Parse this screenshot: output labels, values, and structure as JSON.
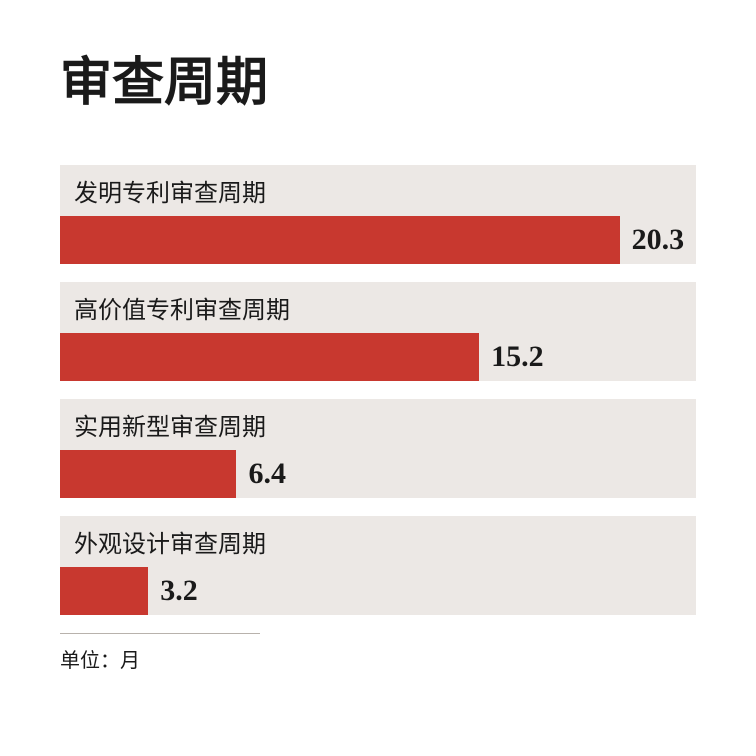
{
  "title": "审查周期",
  "unit_label": "单位：月",
  "chart": {
    "type": "bar-horizontal",
    "max_value": 20.3,
    "bar_full_width_pct": 88,
    "bar_color": "#c8382f",
    "band_bg_color": "#ece8e5",
    "value_font": "Georgia, serif",
    "value_fontsize": 30,
    "label_fontsize": 24,
    "title_fontsize": 52,
    "title_color": "#1a1a1a",
    "background_color": "#ffffff",
    "items": [
      {
        "label": "发明专利审查周期",
        "value": 20.3,
        "display": "20.3"
      },
      {
        "label": "高价值专利审查周期",
        "value": 15.2,
        "display": "15.2"
      },
      {
        "label": "实用新型审查周期",
        "value": 6.4,
        "display": "6.4"
      },
      {
        "label": "外观设计审查周期",
        "value": 3.2,
        "display": "3.2"
      }
    ]
  }
}
